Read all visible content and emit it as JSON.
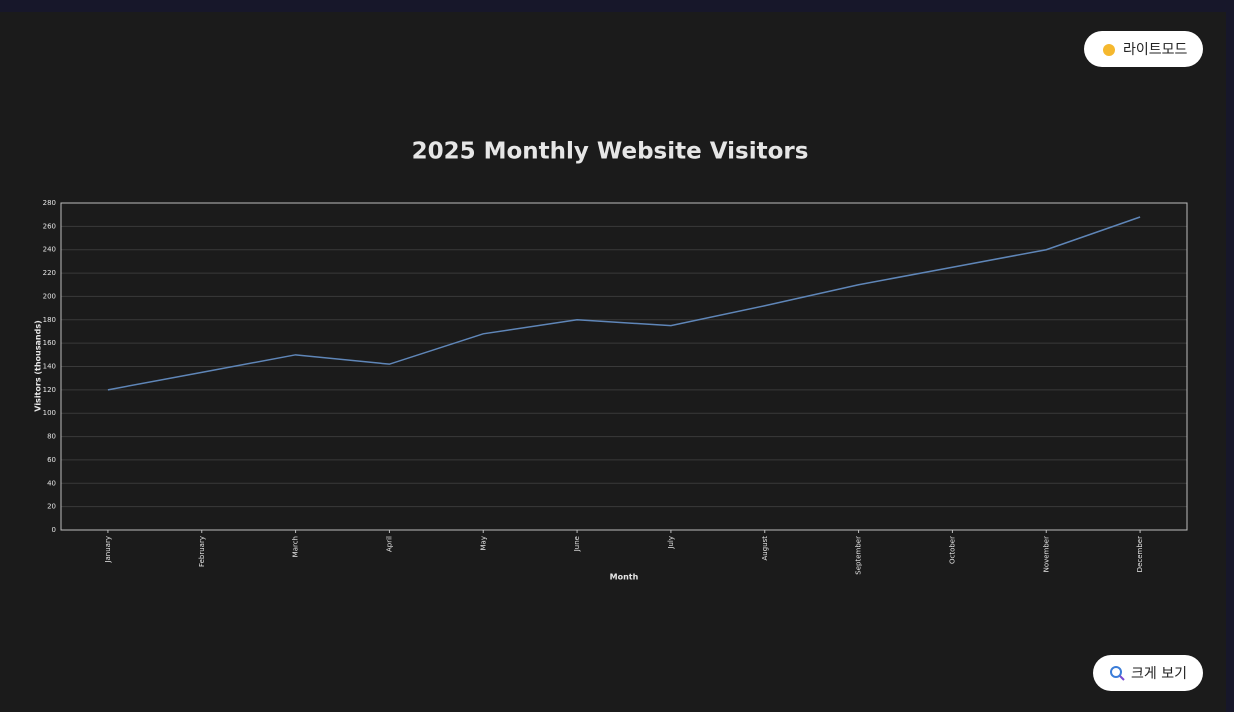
{
  "chart_data": {
    "type": "line",
    "title": "2025 Monthly Website Visitors",
    "x_label": "Month",
    "y_label": "Visitors (thousands)",
    "categories": [
      "January",
      "February",
      "March",
      "April",
      "May",
      "June",
      "July",
      "August",
      "September",
      "October",
      "November",
      "December"
    ],
    "values": [
      120,
      135,
      150,
      142,
      168,
      180,
      175,
      192,
      210,
      225,
      240,
      268
    ],
    "color": "#5f86b8",
    "ylim": [
      0,
      280
    ],
    "yticks": [
      0,
      20,
      40,
      60,
      80,
      100,
      120,
      140,
      160,
      180,
      200,
      220,
      240,
      260,
      280
    ],
    "grid": true
  },
  "buttons": {
    "theme": "라이트모드",
    "zoom": "크게 보기"
  }
}
